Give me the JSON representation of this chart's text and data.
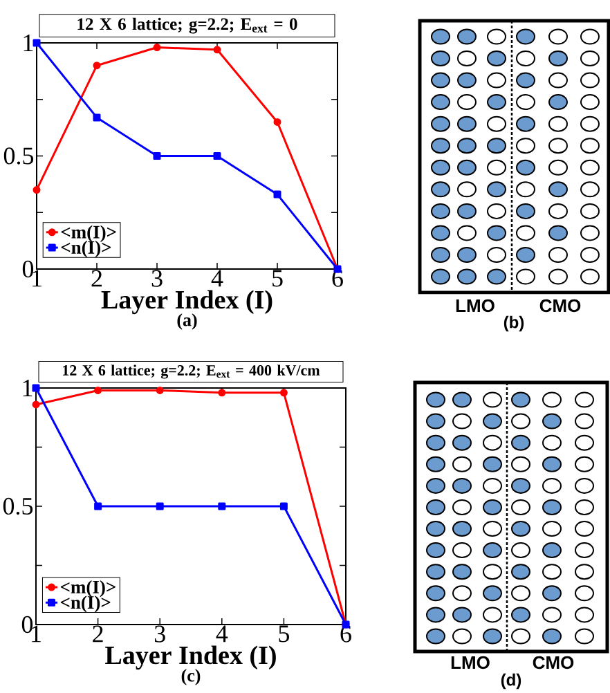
{
  "chart_data": [
    {
      "type": "line",
      "title": "12 X 6 lattice;   g=2.2;   E$_{ext}$ = 0",
      "xlabel": "Layer Index (I)",
      "annotations": [
        "(a)"
      ],
      "x": [
        1,
        2,
        3,
        4,
        5,
        6
      ],
      "xlim": [
        1,
        6
      ],
      "xticks": [
        1,
        2,
        3,
        4,
        5,
        6
      ],
      "ylim": [
        0,
        1
      ],
      "yticks": [
        0,
        0.5,
        1
      ],
      "legend": "bottom left",
      "line_style": "solid",
      "series": [
        {
          "name": "<m(I)>",
          "color": "#ff0000",
          "marker": "circle",
          "values": [
            0.35,
            0.9,
            0.98,
            0.97,
            0.65,
            0
          ]
        },
        {
          "name": "<n(I)>",
          "color": "#0000ff",
          "marker": "square",
          "values": [
            1,
            0.67,
            0.5,
            0.5,
            0.33,
            0
          ]
        }
      ]
    },
    {
      "type": "other",
      "title": "(b)",
      "annotations": [
        "LMO",
        "CMO"
      ]
    },
    {
      "type": "line",
      "title": "12 X 6  lattice;  g=2.2;  E$_{ext}$ = 400 kV/cm",
      "xlabel": "Layer Index (I)",
      "annotations": [
        "(c)"
      ],
      "x": [
        1,
        2,
        3,
        4,
        5,
        6
      ],
      "xlim": [
        1,
        6
      ],
      "xticks": [
        1,
        2,
        3,
        4,
        5,
        6
      ],
      "ylim": [
        0,
        1
      ],
      "yticks": [
        0,
        0.5,
        1
      ],
      "legend": "bottom left",
      "line_style": "solid",
      "series": [
        {
          "name": "<m(I)>",
          "color": "#ff0000",
          "marker": "circle",
          "values": [
            0.93,
            0.99,
            0.99,
            0.98,
            0.98,
            0
          ]
        },
        {
          "name": "<n(I)>",
          "color": "#0000ff",
          "marker": "square",
          "values": [
            1,
            0.5,
            0.5,
            0.5,
            0.5,
            0
          ]
        }
      ]
    },
    {
      "type": "other",
      "title": "(d)",
      "annotations": [
        "LMO",
        "CMO"
      ]
    }
  ]
}
